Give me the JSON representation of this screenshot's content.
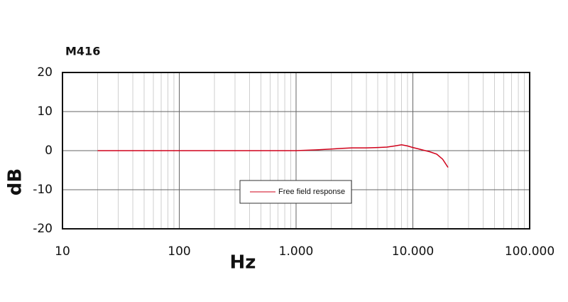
{
  "chart_data": {
    "type": "line",
    "title": "M416",
    "x_label": "Hz",
    "y_label": "dB",
    "log_x": true,
    "grid": true,
    "x": [
      20,
      50,
      100,
      200,
      500,
      1000,
      1500,
      2000,
      2500,
      3000,
      4000,
      5000,
      6000,
      7000,
      8000,
      9000,
      10000,
      11000,
      12000,
      14000,
      16000,
      18000,
      20000
    ],
    "series": [
      {
        "name": "Free field response",
        "color": "#d0021b",
        "values": [
          0,
          0,
          0,
          0,
          0,
          0,
          0.2,
          0.4,
          0.6,
          0.7,
          0.7,
          0.8,
          0.9,
          1.2,
          1.5,
          1.2,
          0.8,
          0.5,
          0.2,
          -0.3,
          -0.9,
          -2.2,
          -4.3
        ]
      }
    ],
    "xlim": [
      10,
      100000
    ],
    "xticks": [
      10,
      100,
      {
        "value": 1000,
        "label": "1.000"
      },
      {
        "value": 10000,
        "label": "10.000"
      },
      {
        "value": 100000,
        "label": "100.000"
      }
    ],
    "ylim": [
      -20,
      20
    ],
    "yticks": [
      -20,
      -10,
      0,
      10,
      20
    ]
  }
}
